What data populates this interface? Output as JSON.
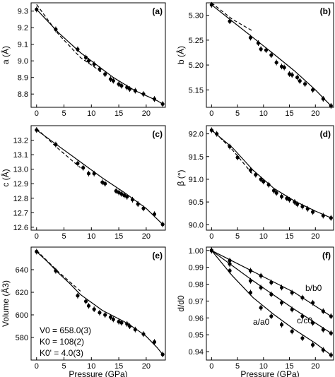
{
  "chart_data": [
    {
      "type": "scatter",
      "panel_label": "(a)",
      "ylabel": "a (Å)",
      "xlabel": "",
      "xlim": [
        -1,
        23.5
      ],
      "ylim": [
        8.72,
        9.35
      ],
      "xticks": [
        "0",
        "5",
        "10",
        "15",
        "20"
      ],
      "yticks": [
        "8.8",
        "8.9",
        "9.0",
        "9.1",
        "9.2",
        "9.3"
      ],
      "yticks_values": [
        8.8,
        8.9,
        9.0,
        9.1,
        9.2,
        9.3
      ],
      "series": [
        {
          "x": [
            0,
            3.5,
            7.5,
            9.0,
            9.5,
            10.5,
            11.5,
            12.5,
            13.5,
            14.0,
            15.0,
            15.5,
            16.5,
            17.0,
            18.0,
            19.5,
            21.5,
            23.0
          ],
          "y": [
            9.31,
            9.19,
            9.07,
            9.02,
            9.0,
            8.98,
            8.95,
            8.92,
            8.89,
            8.88,
            8.86,
            8.85,
            8.84,
            8.83,
            8.82,
            8.8,
            8.77,
            8.74
          ]
        }
      ],
      "fit_solid": {
        "x": [
          0,
          2,
          4,
          6,
          8,
          10,
          12,
          14,
          16,
          18,
          20,
          22,
          23
        ],
        "y": [
          9.31,
          9.24,
          9.17,
          9.11,
          9.05,
          9.0,
          8.95,
          8.9,
          8.86,
          8.82,
          8.79,
          8.76,
          8.74
        ]
      },
      "fit_dashed": {
        "x": [
          0,
          4,
          8,
          12
        ],
        "y": [
          9.34,
          9.16,
          9.02,
          8.93
        ]
      }
    },
    {
      "type": "scatter",
      "panel_label": "(b)",
      "ylabel": "b (Å)",
      "xlabel": "",
      "xlim": [
        -1,
        23.5
      ],
      "ylim": [
        5.115,
        5.325
      ],
      "xticks": [
        "0",
        "5",
        "10",
        "15",
        "20"
      ],
      "yticks": [
        "5.15",
        "5.20",
        "5.25",
        "5.30"
      ],
      "yticks_values": [
        5.15,
        5.2,
        5.25,
        5.3
      ],
      "series": [
        {
          "x": [
            0,
            3.5,
            7.5,
            9.0,
            9.5,
            10.5,
            11.5,
            12.5,
            13.5,
            14.0,
            15.0,
            15.5,
            16.5,
            17.0,
            18.0,
            19.5,
            21.5,
            23.0
          ],
          "y": [
            5.321,
            5.288,
            5.255,
            5.244,
            5.232,
            5.23,
            5.22,
            5.205,
            5.197,
            5.195,
            5.182,
            5.18,
            5.175,
            5.168,
            5.162,
            5.15,
            5.132,
            5.118
          ]
        }
      ],
      "fit_solid": {
        "x": [
          0,
          4,
          8,
          12,
          16,
          20,
          23
        ],
        "y": [
          5.321,
          5.288,
          5.255,
          5.222,
          5.188,
          5.15,
          5.118
        ]
      },
      "fit_dashed": {
        "x": [
          0,
          4,
          8
        ],
        "y": [
          5.325,
          5.292,
          5.268
        ]
      }
    },
    {
      "type": "scatter",
      "panel_label": "(c)",
      "ylabel": "c (Å)",
      "xlabel": "",
      "xlim": [
        -1,
        23.5
      ],
      "ylim": [
        12.58,
        13.3
      ],
      "xticks": [
        "0",
        "5",
        "10",
        "15",
        "20"
      ],
      "yticks": [
        "12.6",
        "12.7",
        "12.8",
        "12.9",
        "13.0",
        "13.1",
        "13.2"
      ],
      "yticks_values": [
        12.6,
        12.7,
        12.8,
        12.9,
        13.0,
        13.1,
        13.2
      ],
      "series": [
        {
          "x": [
            0,
            3.5,
            7.5,
            8.5,
            9.5,
            10.5,
            12.0,
            12.5,
            14.5,
            15.0,
            15.5,
            16.0,
            16.5,
            17.5,
            18.5,
            19.5,
            21.5,
            23.0
          ],
          "y": [
            13.27,
            13.17,
            13.04,
            13.01,
            12.97,
            12.97,
            12.91,
            12.9,
            12.85,
            12.84,
            12.83,
            12.82,
            12.81,
            12.79,
            12.76,
            12.73,
            12.69,
            12.62
          ]
        }
      ],
      "fit_solid": {
        "x": [
          0,
          4,
          8,
          12,
          16,
          20,
          23
        ],
        "y": [
          13.27,
          13.16,
          13.05,
          12.94,
          12.84,
          12.73,
          12.62
        ]
      },
      "fit_dashed": {
        "x": [
          0,
          4,
          8
        ],
        "y": [
          13.28,
          13.14,
          13.01
        ]
      }
    },
    {
      "type": "scatter",
      "panel_label": "(d)",
      "ylabel": "β (°)",
      "xlabel": "",
      "xlim": [
        -1,
        23.5
      ],
      "ylim": [
        89.88,
        92.18
      ],
      "xticks": [
        "0",
        "5",
        "10",
        "15",
        "20"
      ],
      "yticks": [
        "90.0",
        "90.5",
        "91.0",
        "91.5",
        "92.0"
      ],
      "yticks_values": [
        90.0,
        90.5,
        91.0,
        91.5,
        92.0
      ],
      "series": [
        {
          "x": [
            0,
            1,
            3.5,
            5.0,
            7.5,
            8.5,
            9.5,
            10.0,
            11.0,
            12.0,
            12.5,
            13.5,
            14.5,
            15.0,
            16.0,
            16.5,
            17.5,
            18.5,
            19.5,
            21.5,
            23.0
          ],
          "y": [
            92.08,
            92.0,
            91.72,
            91.48,
            91.2,
            91.1,
            91.0,
            90.95,
            90.88,
            90.75,
            90.7,
            90.62,
            90.58,
            90.55,
            90.5,
            90.45,
            90.4,
            90.35,
            90.28,
            90.2,
            90.15
          ]
        }
      ],
      "fit_solid": {
        "x": [
          0,
          4,
          8,
          12,
          16,
          20,
          23
        ],
        "y": [
          92.08,
          91.7,
          91.2,
          90.8,
          90.52,
          90.3,
          90.15
        ]
      },
      "fit_dashed": {
        "x": [
          0,
          4,
          8
        ],
        "y": [
          92.1,
          91.65,
          91.1
        ]
      }
    },
    {
      "type": "scatter",
      "panel_label": "(e)",
      "ylabel": "Volume (Å3)",
      "xlabel": "Pressure (GPa)",
      "xlim": [
        -1,
        23.5
      ],
      "ylim": [
        560,
        660
      ],
      "xticks": [
        "0",
        "5",
        "10",
        "15",
        "20"
      ],
      "yticks": [
        "580",
        "600",
        "620",
        "640"
      ],
      "yticks_values": [
        580,
        600,
        620,
        640
      ],
      "annotation": [
        "V0 = 658.0(3)",
        "K0 = 108(2)",
        "K0' = 4.0(3)"
      ],
      "series": [
        {
          "x": [
            0,
            3.5,
            7.5,
            9.0,
            9.5,
            10.5,
            11.5,
            12.5,
            13.5,
            14.0,
            15.0,
            15.5,
            16.5,
            17.0,
            18.0,
            19.5,
            21.5,
            23.0
          ],
          "y": [
            656,
            639,
            617,
            612,
            608,
            605,
            602,
            600,
            598,
            596,
            594,
            593,
            592,
            590,
            587,
            583,
            576,
            565
          ]
        }
      ],
      "fit_solid": {
        "x": [
          0,
          2,
          4,
          6,
          8,
          10,
          12,
          14,
          16,
          18,
          20,
          22,
          23
        ],
        "y": [
          656,
          647,
          637,
          628,
          618,
          611,
          604,
          599,
          594,
          588,
          581,
          571,
          565
        ]
      },
      "fit_dashed": {
        "x": [
          0,
          4,
          8
        ],
        "y": [
          657,
          638,
          621
        ]
      }
    },
    {
      "type": "scatter",
      "panel_label": "(f)",
      "ylabel": "d/d0",
      "xlabel": "Pressure (GPa)",
      "xlim": [
        -1,
        23.5
      ],
      "ylim": [
        0.935,
        1.002
      ],
      "xticks": [
        "0",
        "5",
        "10",
        "15",
        "20"
      ],
      "yticks": [
        "0.94",
        "0.95",
        "0.96",
        "0.97",
        "0.98",
        "0.99",
        "1.00"
      ],
      "yticks_values": [
        0.94,
        0.95,
        0.96,
        0.97,
        0.98,
        0.99,
        1.0
      ],
      "series": [
        {
          "name": "b/b0",
          "x": [
            0,
            3.5,
            7.5,
            9.5,
            11.5,
            13.5,
            15.5,
            17.5,
            19.5,
            21.5,
            23.0
          ],
          "y": [
            1.0,
            0.994,
            0.988,
            0.985,
            0.981,
            0.978,
            0.975,
            0.972,
            0.969,
            0.964,
            0.961
          ],
          "fit": {
            "x": [
              0,
              8,
              16,
              23
            ],
            "y": [
              1.0,
              0.9875,
              0.975,
              0.961
            ]
          }
        },
        {
          "name": "c/c0",
          "x": [
            0,
            3.5,
            7.5,
            9.5,
            11.5,
            13.5,
            15.5,
            17.5,
            19.5,
            21.5,
            23.0
          ],
          "y": [
            1.0,
            0.992,
            0.982,
            0.978,
            0.974,
            0.969,
            0.965,
            0.961,
            0.957,
            0.953,
            0.951
          ],
          "fit": {
            "x": [
              0,
              8,
              16,
              23
            ],
            "y": [
              1.0,
              0.982,
              0.965,
              0.951
            ]
          }
        },
        {
          "name": "a/a0",
          "x": [
            0,
            3.5,
            7.5,
            9.5,
            11.5,
            13.5,
            15.5,
            17.5,
            19.5,
            21.5,
            23.0
          ],
          "y": [
            1.0,
            0.988,
            0.975,
            0.966,
            0.961,
            0.956,
            0.952,
            0.948,
            0.944,
            0.941,
            0.938
          ],
          "fit": {
            "x": [
              0,
              4,
              8,
              12,
              16,
              20,
              23
            ],
            "y": [
              1.0,
              0.985,
              0.972,
              0.962,
              0.953,
              0.945,
              0.938
            ]
          }
        }
      ]
    }
  ]
}
